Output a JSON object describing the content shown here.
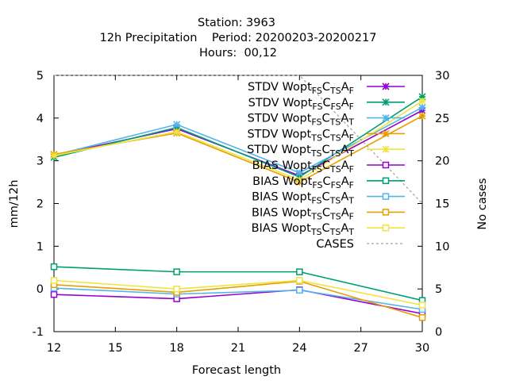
{
  "chart_data": {
    "type": "line",
    "title_lines": [
      "Station:     3963",
      "12h Precipitation    Period: 20200203-20200217",
      "Hours:  00,12"
    ],
    "xlabel": "Forecast length",
    "ylabel": "mm/12h",
    "y2label": "No cases",
    "xlim": [
      12,
      30
    ],
    "ylim": [
      -1,
      5
    ],
    "y2lim": [
      0,
      30
    ],
    "xticks": [
      12,
      15,
      18,
      21,
      24,
      27,
      30
    ],
    "yticks": [
      -1,
      0,
      1,
      2,
      3,
      4,
      5
    ],
    "y2ticks": [
      0,
      5,
      10,
      15,
      20,
      25,
      30
    ],
    "grid": false,
    "legend_position": "top-right",
    "x": [
      12,
      18,
      24,
      30
    ],
    "series": [
      {
        "legend": {
          "pre": "STDV Wopt",
          "s1": "FS",
          "mid": "C",
          "s2": "TS",
          "post": "A",
          "s3": "F"
        },
        "color": "#9400d3",
        "marker": "x-star",
        "values": [
          3.13,
          3.75,
          2.65,
          4.18
        ]
      },
      {
        "legend": {
          "pre": "STDV Wopt",
          "s1": "FS",
          "mid": "C",
          "s2": "FS",
          "post": "A",
          "s3": "F"
        },
        "color": "#009e73",
        "marker": "x-star",
        "values": [
          3.08,
          3.78,
          2.62,
          4.5
        ]
      },
      {
        "legend": {
          "pre": "STDV Wopt",
          "s1": "FS",
          "mid": "C",
          "s2": "TS",
          "post": "A",
          "s3": "T"
        },
        "color": "#56b4e9",
        "marker": "x-star",
        "values": [
          3.13,
          3.85,
          2.72,
          4.25
        ]
      },
      {
        "legend": {
          "pre": "STDV Wopt",
          "s1": "TS",
          "mid": "C",
          "s2": "TS",
          "post": "A",
          "s3": "F"
        },
        "color": "#e69f00",
        "marker": "x-star",
        "values": [
          3.15,
          3.65,
          2.5,
          4.05
        ]
      },
      {
        "legend": {
          "pre": "STDV Wopt",
          "s1": "TS",
          "mid": "C",
          "s2": "TS",
          "post": "A",
          "s3": "T"
        },
        "color": "#f0e442",
        "marker": "x-star",
        "values": [
          3.12,
          3.68,
          2.55,
          4.4
        ]
      },
      {
        "legend": {
          "pre": "BIAS Wopt",
          "s1": "FS",
          "mid": "C",
          "s2": "TS",
          "post": "A",
          "s3": "F"
        },
        "color": "#9400d3",
        "marker": "square",
        "values": [
          -0.13,
          -0.23,
          -0.02,
          -0.58
        ]
      },
      {
        "legend": {
          "pre": "BIAS Wopt",
          "s1": "FS",
          "mid": "C",
          "s2": "FS",
          "post": "A",
          "s3": "F"
        },
        "color": "#009e73",
        "marker": "square",
        "values": [
          0.52,
          0.4,
          0.4,
          -0.27
        ]
      },
      {
        "legend": {
          "pre": "BIAS Wopt",
          "s1": "FS",
          "mid": "C",
          "s2": "TS",
          "post": "A",
          "s3": "T"
        },
        "color": "#56b4e9",
        "marker": "square",
        "values": [
          0.02,
          -0.12,
          -0.03,
          -0.48
        ]
      },
      {
        "legend": {
          "pre": "BIAS Wopt",
          "s1": "TS",
          "mid": "C",
          "s2": "TS",
          "post": "A",
          "s3": "F"
        },
        "color": "#e69f00",
        "marker": "square",
        "values": [
          0.1,
          -0.08,
          0.18,
          -0.67
        ]
      },
      {
        "legend": {
          "pre": "BIAS Wopt",
          "s1": "TS",
          "mid": "C",
          "s2": "TS",
          "post": "A",
          "s3": "T"
        },
        "color": "#f0e442",
        "marker": "square",
        "values": [
          0.2,
          0.0,
          0.2,
          -0.38
        ]
      },
      {
        "legend": {
          "pre": "CASES",
          "s1": "",
          "mid": "",
          "s2": "",
          "post": "",
          "s3": ""
        },
        "color": "#a0a0a0",
        "marker": "dashed",
        "axis": "y2",
        "values": [
          30,
          30,
          30,
          15
        ]
      }
    ]
  }
}
